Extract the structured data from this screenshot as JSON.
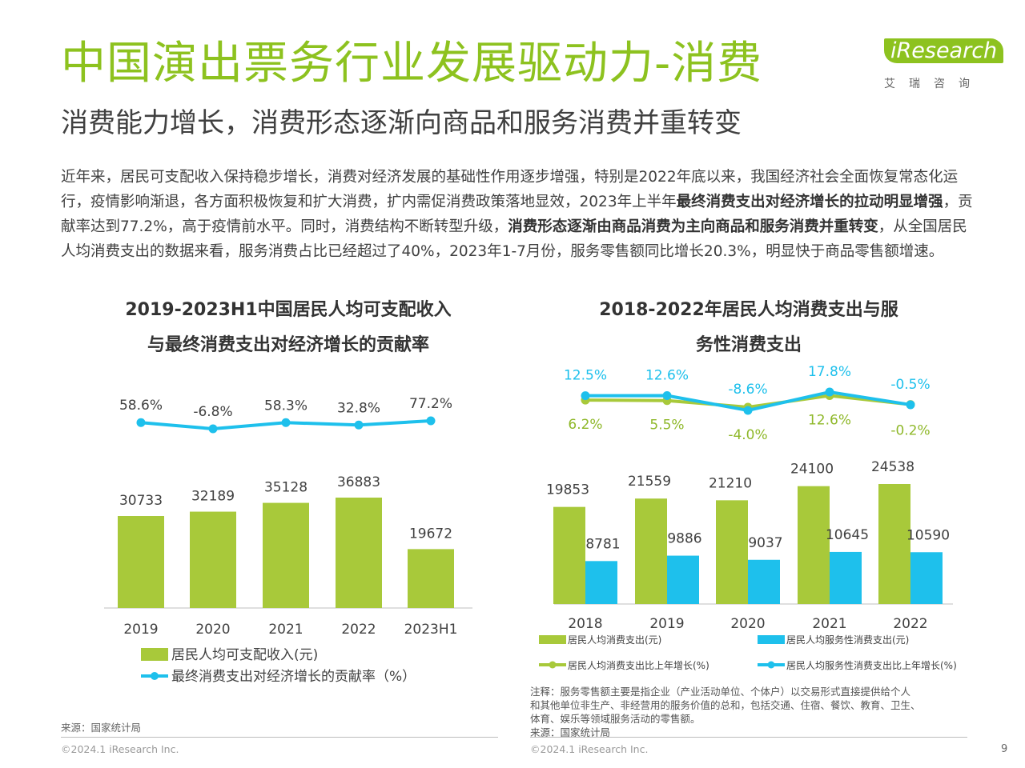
{
  "page": {
    "title": "中国演出票务行业发展驱动力-消费",
    "subtitle": "消费能力增长，消费形态逐渐向商品和服务消费并重转变",
    "logo_brand": "iResearch",
    "logo_sub": "艾瑞咨询",
    "body_parts": [
      {
        "text": "近年来，居民可支配收入保持稳步增长，消费对经济发展的基础性作用逐步增强，特别是2022年底以来，我国经济社会全面恢复常态化运行，疫情影响渐退，各方面积极恢复和扩大消费，扩内需促消费政策落地显效，2023年上半年",
        "bold": false
      },
      {
        "text": "最终消费支出对经济增长的拉动明显增强",
        "bold": true
      },
      {
        "text": "，贡献率达到77.2%，高于疫情前水平。同时，消费结构不断转型升级，",
        "bold": false
      },
      {
        "text": "消费形态逐渐由商品消费为主向商品和服务消费并重转变",
        "bold": true
      },
      {
        "text": "，从全国居民人均消费支出的数据来看，服务消费占比已经超过了40%，2023年1-7月份，服务零售额同比增长20.3%，明显快于商品零售额增速。",
        "bold": false
      }
    ],
    "chart1_title_line1": "2019-2023H1中国居民人均可支配收入",
    "chart1_title_line2": "与最终消费支出对经济增长的贡献率",
    "chart2_title_line1": "2018-2022年居民人均消费支出与服",
    "chart2_title_line2": "务性消费支出",
    "source_left": "来源：国家统计局",
    "copyright_left": "©2024.1 iResearch Inc.",
    "note_line1": "注释：服务零售额主要是指企业（产业活动单位、个体户）以交易形式直接提供给个人",
    "note_line2": "和其他单位非生产、非经营用的服务价值的总和，包括交通、住宿、餐饮、教育、卫生、",
    "note_line3": "体育、娱乐等领域服务活动的零售额。",
    "source_right": "来源：国家统计局",
    "copyright_right": "©2024.1 iResearch Inc.",
    "page_number": "9",
    "colors": {
      "green": "#a8c93a",
      "cyan": "#1ec0ec",
      "title_green": "#8dc21f"
    }
  },
  "chart_data": [
    {
      "type": "bar",
      "categories": [
        "2019",
        "2020",
        "2021",
        "2022",
        "2023H1"
      ],
      "series": [
        {
          "name": "居民人均可支配收入(元)",
          "type": "bar",
          "values": [
            30733,
            32189,
            35128,
            36883,
            19672
          ]
        },
        {
          "name": "最终消费支出对经济增长的贡献率（%）",
          "type": "line",
          "values": [
            58.6,
            -6.8,
            58.3,
            32.8,
            77.2
          ],
          "labels": [
            "58.6%",
            "-6.8%",
            "58.3%",
            "32.8%",
            "77.2%"
          ]
        }
      ]
    },
    {
      "type": "bar",
      "categories": [
        "2018",
        "2019",
        "2020",
        "2021",
        "2022"
      ],
      "series": [
        {
          "name": "居民人均消费支出(元)",
          "type": "bar",
          "values": [
            19853,
            21559,
            21210,
            24100,
            24538
          ]
        },
        {
          "name": "居民人均服务性消费支出(元)",
          "type": "bar",
          "values": [
            8781,
            9886,
            9037,
            10645,
            10590
          ]
        },
        {
          "name": "居民人均消费支出比上年增长(%)",
          "type": "line",
          "values": [
            6.2,
            5.5,
            -4.0,
            12.6,
            -0.2
          ],
          "labels": [
            "6.2%",
            "5.5%",
            "-4.0%",
            "12.6%",
            "-0.2%"
          ]
        },
        {
          "name": "居民人均服务性消费支出比上年增长(%)",
          "type": "line",
          "values": [
            12.5,
            12.6,
            -8.6,
            17.8,
            -0.5
          ],
          "labels": [
            "12.5%",
            "12.6%",
            "-8.6%",
            "17.8%",
            "-0.5%"
          ]
        }
      ]
    }
  ]
}
